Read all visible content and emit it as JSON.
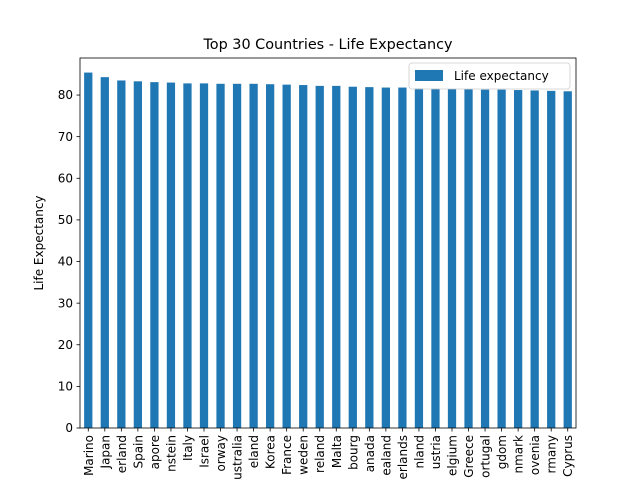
{
  "chart_data": {
    "type": "bar",
    "title": "Top 30 Countries - Life Expectancy",
    "xlabel": "",
    "ylabel": "Life Expectancy",
    "ylim": [
      0,
      88.9
    ],
    "yticks": [
      0,
      10,
      20,
      30,
      40,
      50,
      60,
      70,
      80
    ],
    "grid": false,
    "legend_position": "top-right",
    "color": "#1f77b4",
    "categories": [
      "Marino",
      "Japan",
      "erland",
      "Spain",
      "apore",
      "nstein",
      "Italy",
      "Israel",
      "orway",
      "ustralia",
      "eland",
      "Korea",
      "France",
      "weden",
      "reland",
      "Malta",
      "bourg",
      "anada",
      "ealand",
      "erlands",
      "nland",
      "ustria",
      "elgium",
      "Greece",
      "ortugal",
      "gdom",
      "nmark",
      "ovenia",
      "rmany",
      "Cyprus"
    ],
    "series": [
      {
        "name": "Life expectancy",
        "values": [
          85.4,
          84.3,
          83.5,
          83.3,
          83.1,
          83.0,
          82.8,
          82.8,
          82.7,
          82.7,
          82.7,
          82.6,
          82.5,
          82.4,
          82.2,
          82.2,
          82.0,
          81.9,
          81.8,
          81.8,
          81.7,
          81.6,
          81.5,
          81.4,
          81.3,
          81.3,
          81.2,
          81.1,
          81.0,
          80.9
        ]
      }
    ]
  }
}
